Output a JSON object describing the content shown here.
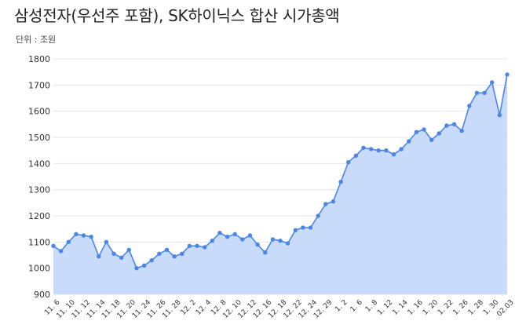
{
  "chart_data": {
    "type": "area",
    "title": "삼성전자(우선주 포함), SK하이닉스 합산 시가총액",
    "unit_label": "단위 : 조원",
    "xlabel": "",
    "ylabel": "",
    "ylim": [
      900,
      1800
    ],
    "yticks": [
      "900",
      "1000",
      "1100",
      "1200",
      "1300",
      "1400",
      "1500",
      "1600",
      "1700",
      "1800"
    ],
    "grid": true,
    "legend": "none",
    "colors": {
      "line": "#4a86e8",
      "fill": "#c6d9fa",
      "point": "#4a86e8"
    },
    "x_tick_labels": [
      "11. 6",
      "11. 10",
      "11. 12",
      "11. 14",
      "11. 18",
      "11. 20",
      "11. 24",
      "11. 26",
      "11. 28",
      "12. 2",
      "12. 4",
      "12. 8",
      "12. 10",
      "12. 12",
      "12. 16",
      "12. 18",
      "12. 22",
      "12. 24",
      "12. 29",
      "1. 2",
      "1. 6",
      "1. 8",
      "1. 12",
      "1. 14",
      "1. 16",
      "1. 20",
      "1. 22",
      "1. 26",
      "1. 28",
      "1. 30",
      "02.03"
    ],
    "series": [
      {
        "values": [
          1085,
          1065,
          1100,
          1130,
          1125,
          1120,
          1045,
          1100,
          1055,
          1040,
          1070,
          1000,
          1010,
          1030,
          1055,
          1070,
          1045,
          1055,
          1085,
          1085,
          1080,
          1105,
          1135,
          1120,
          1130,
          1110,
          1125,
          1090,
          1060,
          1110,
          1105,
          1095,
          1145,
          1155,
          1155,
          1200,
          1245,
          1255,
          1330,
          1405,
          1430,
          1460,
          1455,
          1450,
          1450,
          1435,
          1455,
          1485,
          1520,
          1530,
          1490,
          1515,
          1545,
          1550,
          1525,
          1620,
          1670,
          1670,
          1710,
          1585,
          1740
        ]
      }
    ]
  }
}
